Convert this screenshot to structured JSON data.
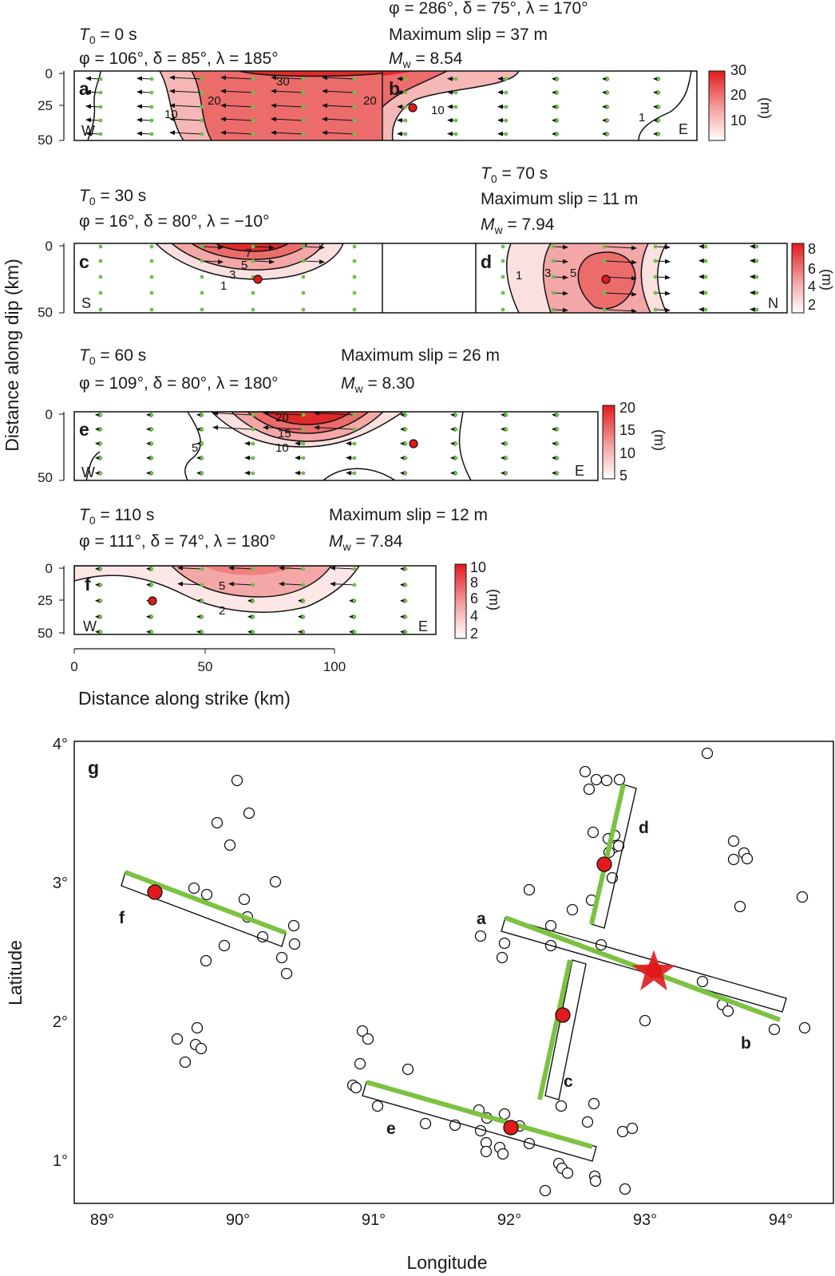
{
  "colors": {
    "slip_high": "#e31a1c",
    "slip_low": "#ffffff",
    "grid_dot": "#6cc04a",
    "fault_trace": "#7cc242",
    "hypocentre": "#e31a1c",
    "aftershock": "#ffffff"
  },
  "panels": {
    "a": {
      "letter": "a",
      "t0_sym": "T",
      "t0_sub": "0",
      "t0_value": " = 0 s",
      "mech": "φ = 106°, δ = 85°, λ = 185°",
      "left_dir": "W",
      "contour_labels": [
        "30",
        "20",
        "10",
        "20"
      ]
    },
    "b": {
      "letter": "b",
      "mech": "φ = 286°, δ = 75°, λ = 170°",
      "max_slip": "Maximum slip = 37 m",
      "mw_sym": "M",
      "mw_sub": "w",
      "mw_value": " = 8.54",
      "right_dir": "E",
      "contour_labels": [
        "10",
        "1"
      ],
      "colorbar": {
        "unit": "(m)",
        "ticks": [
          "30",
          "20",
          "10"
        ]
      }
    },
    "c": {
      "letter": "c",
      "t0_sym": "T",
      "t0_sub": "0",
      "t0_value": " = 30 s",
      "mech": "φ = 16°, δ = 80°, λ = −10°",
      "left_dir": "S",
      "contour_labels": [
        "7",
        "5",
        "3",
        "1"
      ]
    },
    "d": {
      "letter": "d",
      "t0_sym": "T",
      "t0_sub": "0",
      "t0_value": " = 70 s",
      "max_slip": "Maximum slip = 11 m",
      "mw_sym": "M",
      "mw_sub": "w",
      "mw_value": " = 7.94",
      "right_dir": "N",
      "contour_labels": [
        "1",
        "3",
        "5"
      ],
      "colorbar": {
        "unit": "(m)",
        "ticks": [
          "8",
          "6",
          "4",
          "2"
        ]
      }
    },
    "e": {
      "letter": "e",
      "t0_sym": "T",
      "t0_sub": "0",
      "t0_value": " = 60 s",
      "mech": "φ = 109°, δ = 80°, λ = 180°",
      "max_slip": "Maximum slip = 26 m",
      "mw_sym": "M",
      "mw_sub": "w",
      "mw_value": " = 8.30",
      "left_dir": "W",
      "right_dir": "E",
      "contour_labels": [
        "20",
        "15",
        "10",
        "5"
      ],
      "colorbar": {
        "unit": "(m)",
        "ticks": [
          "20",
          "15",
          "10",
          "5"
        ]
      }
    },
    "f": {
      "letter": "f",
      "t0_sym": "T",
      "t0_sub": "0",
      "t0_value": " = 110 s",
      "mech": "φ = 111°, δ = 74°, λ = 180°",
      "max_slip": "Maximum slip = 12 m",
      "mw_sym": "M",
      "mw_sub": "w",
      "mw_value": " = 7.84",
      "left_dir": "W",
      "right_dir": "E",
      "contour_labels": [
        "5",
        "2"
      ],
      "colorbar": {
        "unit": "(m)",
        "ticks": [
          "10",
          "8",
          "6",
          "4",
          "2"
        ]
      }
    }
  },
  "slip_axes": {
    "ylabel": "Distance along dip (km)",
    "xlabel": "Distance along strike (km)",
    "dip_ticks": [
      "0",
      "25",
      "50"
    ],
    "strike_ticks": [
      "0",
      "50",
      "100"
    ]
  },
  "map": {
    "letter": "g",
    "xlabel": "Longitude",
    "ylabel": "Latitude",
    "lon_ticks": [
      "89°",
      "90°",
      "91°",
      "92°",
      "93°",
      "94°"
    ],
    "lat_ticks": [
      "1°",
      "2°",
      "3°",
      "4°"
    ],
    "segment_labels": [
      "a",
      "b",
      "c",
      "d",
      "e",
      "f"
    ]
  }
}
